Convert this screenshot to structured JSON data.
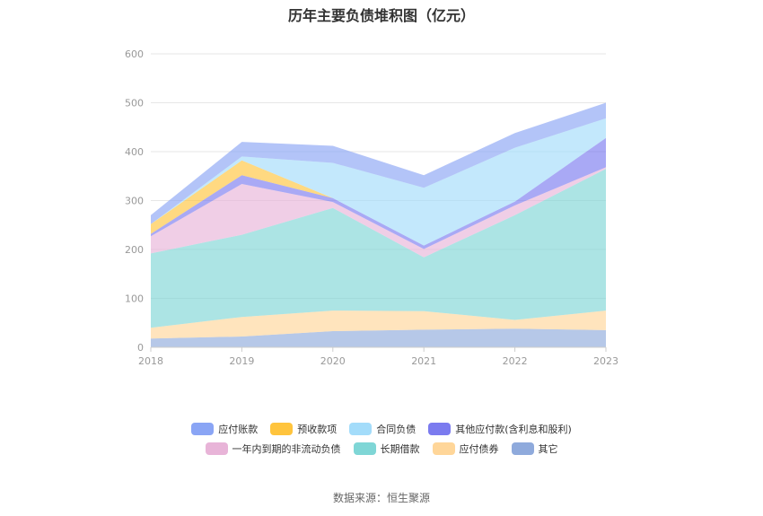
{
  "chart_data": {
    "type": "area",
    "title": "历年主要负债堆积图（亿元）",
    "categories": [
      "2018",
      "2019",
      "2020",
      "2021",
      "2022",
      "2023"
    ],
    "ylim": [
      0,
      600
    ],
    "yticks": [
      "0",
      "100",
      "200",
      "300",
      "400",
      "500",
      "600"
    ],
    "stacked": true,
    "grid": true,
    "legend_position": "bottom",
    "series": [
      {
        "name": "其它",
        "color": "#8faadc",
        "values": [
          18,
          22,
          33,
          36,
          38,
          35
        ]
      },
      {
        "name": "应付债券",
        "color": "#ffd699",
        "values": [
          22,
          40,
          42,
          38,
          18,
          40
        ]
      },
      {
        "name": "长期借款",
        "color": "#7fd6d6",
        "values": [
          152,
          168,
          210,
          110,
          214,
          290
        ]
      },
      {
        "name": "一年内到期的非流动负债",
        "color": "#e8b4d8",
        "values": [
          35,
          104,
          12,
          17,
          20,
          3
        ]
      },
      {
        "name": "其他应付款(含利息和股利)",
        "color": "#7b7bef",
        "values": [
          5,
          18,
          8,
          7,
          8,
          60
        ]
      },
      {
        "name": "预收款项",
        "color": "#ffc43d",
        "values": [
          20,
          30,
          0,
          0,
          0,
          0
        ]
      },
      {
        "name": "合同负债",
        "color": "#a3dcfa",
        "values": [
          0,
          8,
          72,
          118,
          110,
          40
        ]
      },
      {
        "name": "应付账款",
        "color": "#8aa5f5",
        "values": [
          18,
          30,
          35,
          26,
          30,
          32
        ]
      }
    ]
  },
  "legend_rows": [
    [
      "应付账款",
      "预收款项",
      "合同负债",
      "其他应付款(含利息和股利)"
    ],
    [
      "一年内到期的非流动负债",
      "长期借款",
      "应付债券",
      "其它"
    ]
  ],
  "source": "数据来源：恒生聚源"
}
